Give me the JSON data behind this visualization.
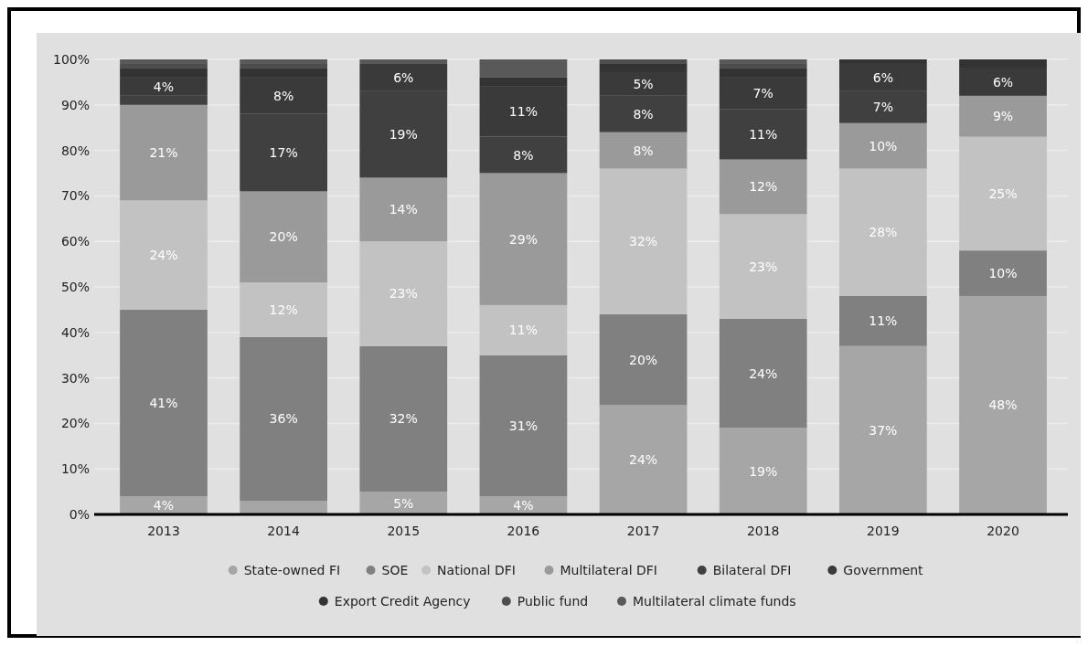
{
  "chart_data": {
    "type": "bar",
    "stacked": true,
    "categories": [
      "2013",
      "2014",
      "2015",
      "2016",
      "2017",
      "2018",
      "2019",
      "2020"
    ],
    "ylim": [
      0,
      100
    ],
    "yticks": [
      {
        "value": 0,
        "label": "0%"
      },
      {
        "value": 10,
        "label": "10%"
      },
      {
        "value": 20,
        "label": "20%"
      },
      {
        "value": 30,
        "label": "30%"
      },
      {
        "value": 40,
        "label": "40%"
      },
      {
        "value": 50,
        "label": "50%"
      },
      {
        "value": 60,
        "label": "60%"
      },
      {
        "value": 70,
        "label": "70%"
      },
      {
        "value": 80,
        "label": "80%"
      },
      {
        "value": 90,
        "label": "90%"
      },
      {
        "value": 100,
        "label": "100%"
      }
    ],
    "grid": "y",
    "legend": "bottom",
    "series": [
      {
        "name": "State-owned FI",
        "color": "#a6a6a6",
        "values": [
          4,
          3,
          5,
          4,
          24,
          19,
          37,
          48
        ],
        "value_labels": [
          "4%",
          null,
          "5%",
          "4%",
          "24%",
          "19%",
          "37%",
          "48%"
        ]
      },
      {
        "name": "SOE",
        "color": "#808080",
        "values": [
          41,
          36,
          32,
          31,
          20,
          24,
          11,
          10
        ],
        "value_labels": [
          "41%",
          "36%",
          "32%",
          "31%",
          "20%",
          "24%",
          "11%",
          "10%"
        ]
      },
      {
        "name": "National DFI",
        "color": "#c2c2c2",
        "values": [
          24,
          12,
          23,
          11,
          32,
          23,
          28,
          25
        ],
        "value_labels": [
          "24%",
          "12%",
          "23%",
          "11%",
          "32%",
          "23%",
          "28%",
          "25%"
        ]
      },
      {
        "name": "Multilateral DFI",
        "color": "#9a9a9a",
        "values": [
          21,
          20,
          14,
          29,
          8,
          12,
          10,
          9
        ],
        "value_labels": [
          "21%",
          "20%",
          "14%",
          "29%",
          "8%",
          "12%",
          "10%",
          "9%"
        ]
      },
      {
        "name": "Bilateral DFI",
        "color": "#404040",
        "values": [
          2,
          17,
          19,
          8,
          8,
          11,
          7,
          0
        ],
        "value_labels": [
          null,
          "17%",
          "19%",
          "8%",
          "8%",
          "11%",
          "7%",
          null
        ]
      },
      {
        "name": "Government",
        "color": "#3a3a3a",
        "values": [
          4,
          8,
          6,
          11,
          5,
          7,
          6,
          6
        ],
        "value_labels": [
          "4%",
          "8%",
          "6%",
          "11%",
          "5%",
          "7%",
          "6%",
          "6%"
        ]
      },
      {
        "name": "Export Credit Agency",
        "color": "#333333",
        "values": [
          2,
          2,
          0,
          2,
          2,
          2,
          1,
          2
        ]
      },
      {
        "name": "Public fund",
        "color": "#4d4d4d",
        "values": [
          1,
          1,
          0,
          0,
          1,
          1,
          0,
          0
        ]
      },
      {
        "name": "Multilateral climate funds",
        "color": "#595959",
        "values": [
          1,
          1,
          1,
          4,
          0,
          1,
          0,
          0
        ]
      }
    ]
  }
}
